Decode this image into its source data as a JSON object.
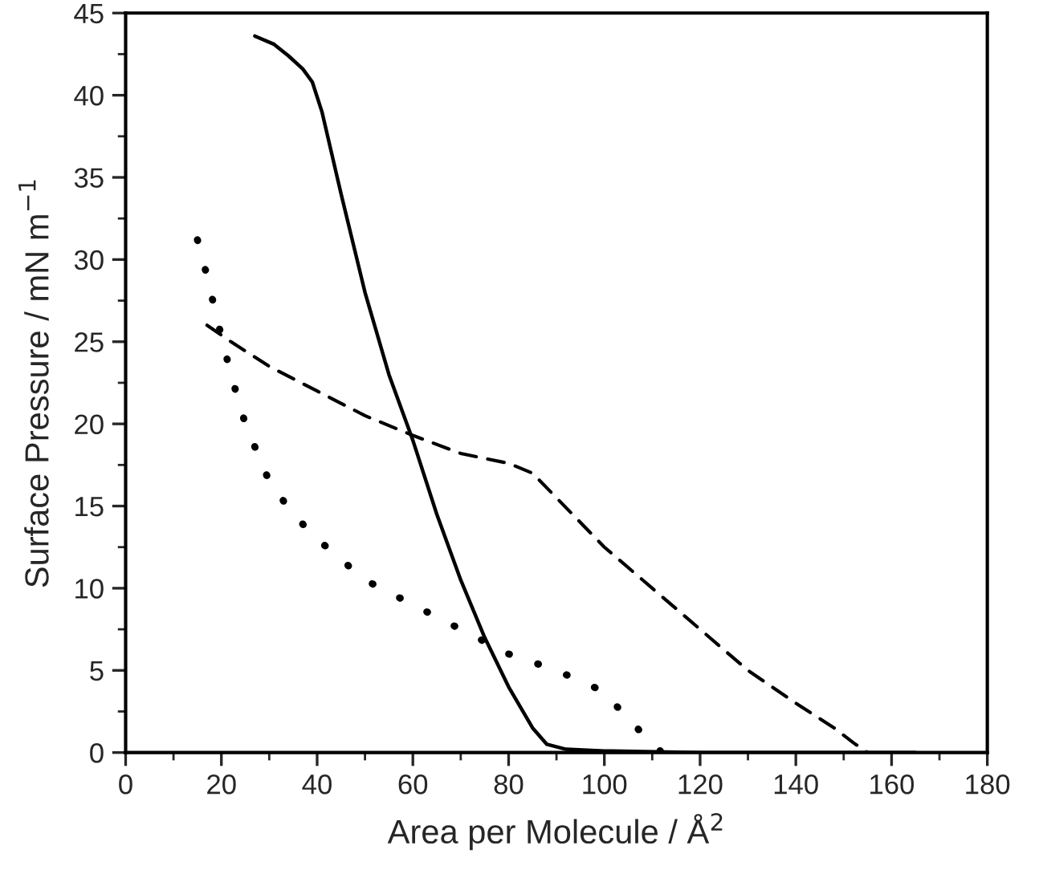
{
  "chart_data": {
    "type": "line",
    "xlabel": "Area per Molecule / Å$^{2}$",
    "ylabel": "Surface Pressure / mN m$^{−1}$",
    "xlim": [
      0,
      180
    ],
    "xticks": [
      0,
      20,
      40,
      60,
      80,
      100,
      120,
      140,
      160,
      180
    ],
    "ylim": [
      0,
      45
    ],
    "yticks": [
      0,
      5,
      10,
      15,
      20,
      25,
      30,
      35,
      40,
      45
    ],
    "grid": false,
    "legend": false,
    "series": [
      {
        "color": "#000000",
        "line_style": "solid",
        "x": [
          27,
          31,
          34,
          37,
          39,
          41,
          45,
          50,
          55,
          60,
          65,
          70,
          75,
          80,
          85,
          88,
          92,
          100,
          120,
          165
        ],
        "values": [
          43.6,
          43.1,
          42.4,
          41.6,
          40.8,
          39,
          34,
          28,
          23,
          19,
          14.5,
          10.5,
          7,
          4,
          1.5,
          0.5,
          0.2,
          0.1,
          0,
          0
        ]
      },
      {
        "color": "#000000",
        "line_style": "dashed",
        "x": [
          17,
          22,
          30,
          40,
          50,
          60,
          70,
          80,
          85,
          90,
          100,
          110,
          120,
          130,
          140,
          148,
          152,
          155
        ],
        "values": [
          26,
          25,
          23.5,
          22,
          20.5,
          19.3,
          18.2,
          17.6,
          17,
          15.5,
          12.5,
          10,
          7.5,
          5,
          3,
          1.5,
          0.6,
          0
        ]
      },
      {
        "color": "#000000",
        "line_style": "dotted",
        "x": [
          15,
          17,
          19,
          22,
          25,
          30,
          35,
          40,
          50,
          60,
          70,
          80,
          90,
          100,
          105,
          110,
          112
        ],
        "values": [
          31.2,
          29,
          26.5,
          23,
          20,
          16.5,
          14.5,
          13,
          10.5,
          9,
          7.5,
          6,
          5,
          3.7,
          2,
          0.6,
          0
        ]
      }
    ]
  }
}
